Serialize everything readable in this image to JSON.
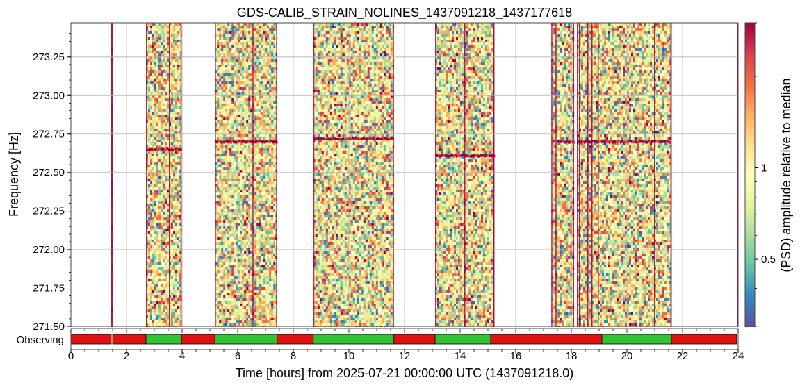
{
  "chart_data": {
    "type": "heatmap",
    "title": "GDS-CALIB_STRAIN_NOLINES_1437091218_1437177618",
    "xlabel": "Time [hours] from 2025-07-21 00:00:00 UTC (1437091218.0)",
    "ylabel": "Frequency [Hz]",
    "colorbar_label": "(PSD) amplitude relative to median",
    "xlim": [
      0,
      24
    ],
    "ylim": [
      271.5,
      273.47
    ],
    "x_ticks": [
      0,
      2,
      4,
      6,
      8,
      10,
      12,
      14,
      16,
      18,
      20,
      22,
      24
    ],
    "x_tick_labels": [
      "0",
      "2",
      "4",
      "6",
      "8",
      "10",
      "12",
      "14",
      "16",
      "18",
      "20",
      "22",
      "24"
    ],
    "y_ticks": [
      271.5,
      271.75,
      272.0,
      272.25,
      272.5,
      272.75,
      273.0,
      273.25
    ],
    "y_tick_labels": [
      "271.50",
      "271.75",
      "272.00",
      "272.25",
      "272.50",
      "272.75",
      "273.00",
      "273.25"
    ],
    "colorbar_scale": "log",
    "colorbar_range": [
      0.3,
      3.0
    ],
    "colorbar_ticks": [
      0.5,
      1
    ],
    "colorbar_tick_labels": [
      "0.5",
      "1"
    ],
    "colormap": [
      "#5e4fa2",
      "#3288bd",
      "#66c2a5",
      "#abdda4",
      "#e6f598",
      "#ffffbf",
      "#fee08b",
      "#fdae61",
      "#f46d43",
      "#d53e4f",
      "#9e0142"
    ],
    "grid": true,
    "data_segments_hours": [
      [
        1.45,
        1.5
      ],
      [
        2.7,
        3.98
      ],
      [
        5.18,
        7.42
      ],
      [
        8.72,
        11.62
      ],
      [
        13.1,
        15.22
      ],
      [
        17.28,
        18.1
      ],
      [
        18.2,
        21.6
      ],
      [
        23.95,
        24.0
      ]
    ],
    "line_segments": [
      {
        "x": [
          2.7,
          3.98
        ],
        "y": 272.65
      },
      {
        "x": [
          5.18,
          7.42
        ],
        "y": 272.7
      },
      {
        "x": [
          8.72,
          11.62
        ],
        "y": 272.72
      },
      {
        "x": [
          13.1,
          15.22
        ],
        "y": 272.61
      },
      {
        "x": [
          17.28,
          18.1
        ],
        "y": 272.7
      },
      {
        "x": [
          18.2,
          21.6
        ],
        "y": 272.7
      },
      {
        "x": [
          23.95,
          24.0
        ],
        "y": 272.68
      }
    ],
    "state_bar": {
      "label": "Observing",
      "colors": {
        "on": "#33c233",
        "off": "#e31212"
      },
      "segments": [
        {
          "start": 0.0,
          "end": 1.45,
          "state": "off"
        },
        {
          "start": 1.5,
          "end": 2.7,
          "state": "off"
        },
        {
          "start": 2.7,
          "end": 3.98,
          "state": "on"
        },
        {
          "start": 3.98,
          "end": 5.18,
          "state": "off"
        },
        {
          "start": 5.18,
          "end": 7.42,
          "state": "on"
        },
        {
          "start": 7.42,
          "end": 8.72,
          "state": "off"
        },
        {
          "start": 8.72,
          "end": 11.62,
          "state": "on"
        },
        {
          "start": 11.62,
          "end": 13.1,
          "state": "off"
        },
        {
          "start": 13.1,
          "end": 15.1,
          "state": "on"
        },
        {
          "start": 15.1,
          "end": 19.1,
          "state": "off"
        },
        {
          "start": 19.1,
          "end": 21.6,
          "state": "on"
        },
        {
          "start": 21.6,
          "end": 23.95,
          "state": "off"
        }
      ]
    }
  }
}
